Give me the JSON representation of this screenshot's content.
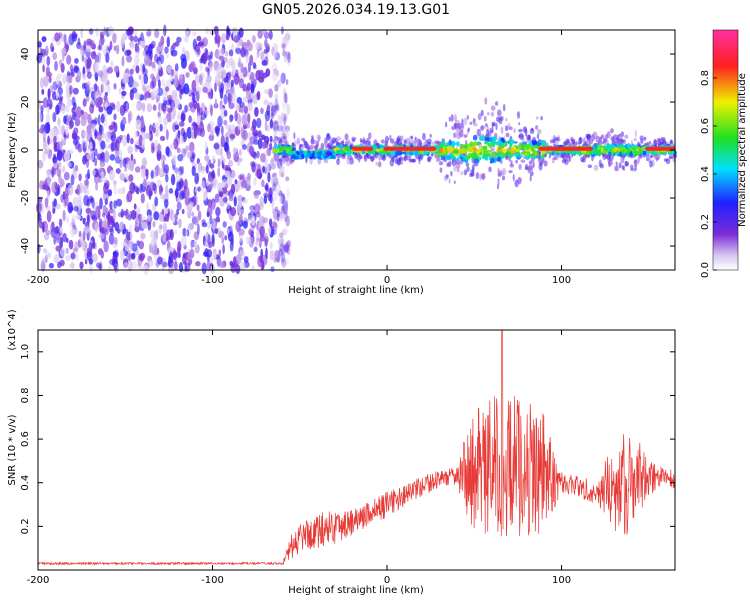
{
  "title": "GN05.2026.034.19.13.G01",
  "chart_data": [
    {
      "type": "heatmap",
      "title": "GN05.2026.034.19.13.G01",
      "xlabel": "Height of straight line (km)",
      "ylabel": "Frequency (Hz)",
      "xlim": [
        -200,
        165
      ],
      "ylim": [
        -50,
        50
      ],
      "x_ticks": [
        -200,
        -100,
        0,
        100
      ],
      "y_ticks": [
        -40,
        -20,
        0,
        20,
        40
      ],
      "colormap": "rainbow (white → purple → blue → cyan → green → yellow → red → magenta)",
      "colorbar": {
        "label": "Normalized spectral amplitude",
        "ticks": [
          0.0,
          0.2,
          0.4,
          0.6,
          0.8
        ],
        "range": [
          0,
          1
        ]
      },
      "regions": [
        {
          "x_range": [
            -200,
            -60
          ],
          "description": "broadband noise across all frequencies (amplitude ~0–0.3)"
        },
        {
          "x_range": [
            -65,
            165
          ],
          "freq_center": 0,
          "description": "narrow signal band near 0 Hz, peak amplitude ~0.8–0.9"
        }
      ]
    },
    {
      "type": "line",
      "xlabel": "Height of straight line (km)",
      "ylabel": "SNR (10 * v/v)",
      "y_multiplier": "(x10^4)",
      "xlim": [
        -200,
        165
      ],
      "ylim": [
        0,
        1.1
      ],
      "x_ticks": [
        -200,
        -100,
        0,
        100
      ],
      "y_ticks": [
        0.2,
        0.4,
        0.6,
        0.8,
        1.0
      ],
      "color": "#e83a36",
      "envelope": {
        "x": [
          -200,
          -100,
          -60,
          -55,
          -50,
          -40,
          -30,
          -20,
          -10,
          0,
          10,
          20,
          30,
          40,
          45,
          50,
          60,
          70,
          80,
          90,
          95,
          100,
          110,
          120,
          130,
          140,
          150,
          160,
          165
        ],
        "y": [
          0.03,
          0.03,
          0.03,
          0.1,
          0.15,
          0.18,
          0.2,
          0.22,
          0.26,
          0.3,
          0.34,
          0.38,
          0.42,
          0.43,
          0.44,
          0.45,
          0.47,
          0.48,
          0.47,
          0.45,
          0.42,
          0.4,
          0.38,
          0.36,
          0.38,
          0.4,
          0.42,
          0.44,
          0.4
        ],
        "spread": [
          0.005,
          0.005,
          0.005,
          0.06,
          0.07,
          0.08,
          0.08,
          0.06,
          0.06,
          0.06,
          0.05,
          0.05,
          0.04,
          0.04,
          0.18,
          0.28,
          0.33,
          0.33,
          0.32,
          0.28,
          0.15,
          0.06,
          0.05,
          0.06,
          0.2,
          0.26,
          0.08,
          0.05,
          0.04
        ]
      },
      "peak": {
        "x": 66,
        "y": 1.1
      }
    }
  ]
}
